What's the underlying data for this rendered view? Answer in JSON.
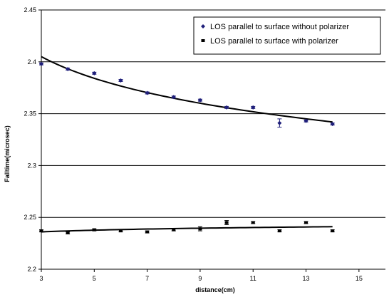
{
  "chart_data": {
    "type": "scatter",
    "title": "",
    "xlabel": "distance(cm)",
    "ylabel": "Falltime(microsec)",
    "xlim": [
      3,
      16
    ],
    "ylim": [
      2.2,
      2.45
    ],
    "xticks": [
      "3",
      "5",
      "7",
      "9",
      "11",
      "13",
      "15"
    ],
    "yticks": [
      "2.2",
      "2.25",
      "2.3",
      "2.35",
      "2.4",
      "2.45"
    ],
    "grid": "horizontal",
    "legend_position": "top-right",
    "series": [
      {
        "name": "LOS parallel to surface without polarizer",
        "marker": "diamond",
        "color": "#1f1f7a",
        "x": [
          3,
          4,
          5,
          6,
          7,
          8,
          9,
          10,
          11,
          12,
          13,
          14
        ],
        "y": [
          2.398,
          2.393,
          2.389,
          2.382,
          2.37,
          2.366,
          2.363,
          2.356,
          2.356,
          2.341,
          2.343,
          2.34
        ],
        "err": [
          0.001,
          0.001,
          0.001,
          0.001,
          0.001,
          0.001,
          0.001,
          0.001,
          0.001,
          0.004,
          0.001,
          0.001
        ],
        "trend": [
          2.405,
          2.342
        ]
      },
      {
        "name": "LOS parallel to surface with polarizer",
        "marker": "square",
        "color": "#000000",
        "x": [
          3,
          4,
          5,
          6,
          7,
          8,
          9,
          10,
          11,
          12,
          13,
          14
        ],
        "y": [
          2.237,
          2.235,
          2.238,
          2.237,
          2.236,
          2.238,
          2.239,
          2.245,
          2.245,
          2.237,
          2.245,
          2.237
        ],
        "err": [
          0.001,
          0.001,
          0.001,
          0.001,
          0.001,
          0.001,
          0.002,
          0.002,
          0.001,
          0.001,
          0.001,
          0.001
        ],
        "trend": [
          2.236,
          2.241
        ]
      }
    ]
  }
}
